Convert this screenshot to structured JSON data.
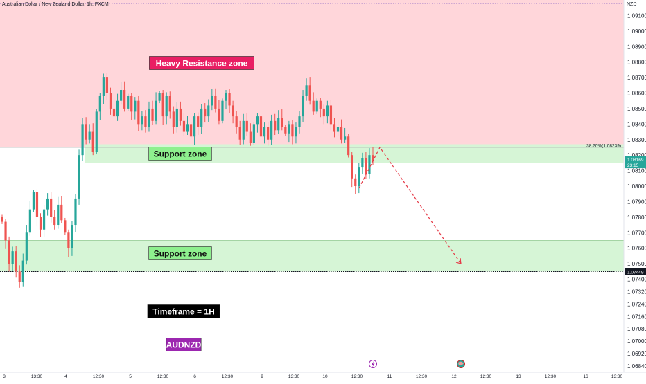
{
  "header": {
    "symbol_title": "Australian Dollar / New Zealand Dollar, 1h, FXCM",
    "currency": "NZD"
  },
  "price_badges": {
    "current_price": "1.08169",
    "countdown": "23:15",
    "target_level": "1.07449"
  },
  "colors": {
    "bull": "#26a69a",
    "bear": "#ef5350",
    "resistance_fill": "#ffd6da",
    "support_fill": "#d6f5d6",
    "arrow": "#e53946",
    "resistance_label_bg": "#e91e63",
    "support_label_bg": "#8ef08e",
    "symbol_label_bg": "#9c27b0"
  },
  "icons": [
    "lightning-icon",
    "globe-icon"
  ],
  "chart_data": {
    "type": "candlestick",
    "ylim": [
      1.068,
      1.092
    ],
    "y_ticks": [
      "1.09100",
      "1.09000",
      "1.08900",
      "1.08800",
      "1.08700",
      "1.08600",
      "1.08500",
      "1.08400",
      "1.08300",
      "1.08200",
      "1.08100",
      "1.08000",
      "1.07900",
      "1.07800",
      "1.07700",
      "1.07600",
      "1.07500",
      "1.07400",
      "1.07320",
      "1.07240",
      "1.07160",
      "1.07080",
      "1.07000",
      "1.06920",
      "1.06840"
    ],
    "x_ticks": [
      "3",
      "13:30",
      "4",
      "12:30",
      "5",
      "12:30",
      "6",
      "12:30",
      "9",
      "13:30",
      "10",
      "12:30",
      "11",
      "12:30",
      "12",
      "12:30",
      "13",
      "12:30",
      "16",
      "13:30"
    ],
    "zones": [
      {
        "label": "Heavy Resistance zone",
        "from": 1.0825,
        "to": 1.092
      },
      {
        "label": "Support zone",
        "from": 1.0815,
        "to": 1.0827
      },
      {
        "label": "Support zone",
        "from": 1.07449,
        "to": 1.0765
      }
    ],
    "fib_level": {
      "label": "38.20%(1.08239)",
      "value": 1.08239
    },
    "target_level": 1.07449,
    "projection": {
      "from_price": 1.0825,
      "to_price": 1.075
    },
    "annotations": [
      "Timeframe = 1H",
      "AUDNZD"
    ],
    "closes": [
      1.0777,
      1.0765,
      1.075,
      1.0758,
      1.0745,
      1.0738,
      1.0752,
      1.077,
      1.0785,
      1.0796,
      1.078,
      1.0772,
      1.0785,
      1.0792,
      1.078,
      1.0775,
      1.0788,
      1.0778,
      1.077,
      1.076,
      1.0775,
      1.0792,
      1.082,
      1.084,
      1.083,
      1.0835,
      1.0822,
      1.0848,
      1.0858,
      1.087,
      1.086,
      1.085,
      1.0845,
      1.0855,
      1.0862,
      1.085,
      1.0858,
      1.0848,
      1.0855,
      1.084,
      1.0845,
      1.0838,
      1.085,
      1.0842,
      1.0855,
      1.086,
      1.0845,
      1.0858,
      1.0848,
      1.0838,
      1.085,
      1.0842,
      1.0835,
      1.084,
      1.0832,
      1.0845,
      1.0838,
      1.085,
      1.0845,
      1.0852,
      1.0858,
      1.085,
      1.0842,
      1.0855,
      1.086,
      1.0852,
      1.0845,
      1.0838,
      1.083,
      1.0842,
      1.0835,
      1.0828,
      1.084,
      1.0845,
      1.0832,
      1.0838,
      1.083,
      1.0842,
      1.0836,
      1.0844,
      1.0838,
      1.0834,
      1.084,
      1.0832,
      1.0838,
      1.0845,
      1.0858,
      1.0865,
      1.0855,
      1.0848,
      1.0855,
      1.085,
      1.0845,
      1.0852,
      1.084,
      1.0835,
      1.0838,
      1.083,
      1.0832,
      1.082,
      1.0805,
      1.08,
      1.0812,
      1.0818,
      1.0808,
      1.082,
      1.0816
    ]
  }
}
